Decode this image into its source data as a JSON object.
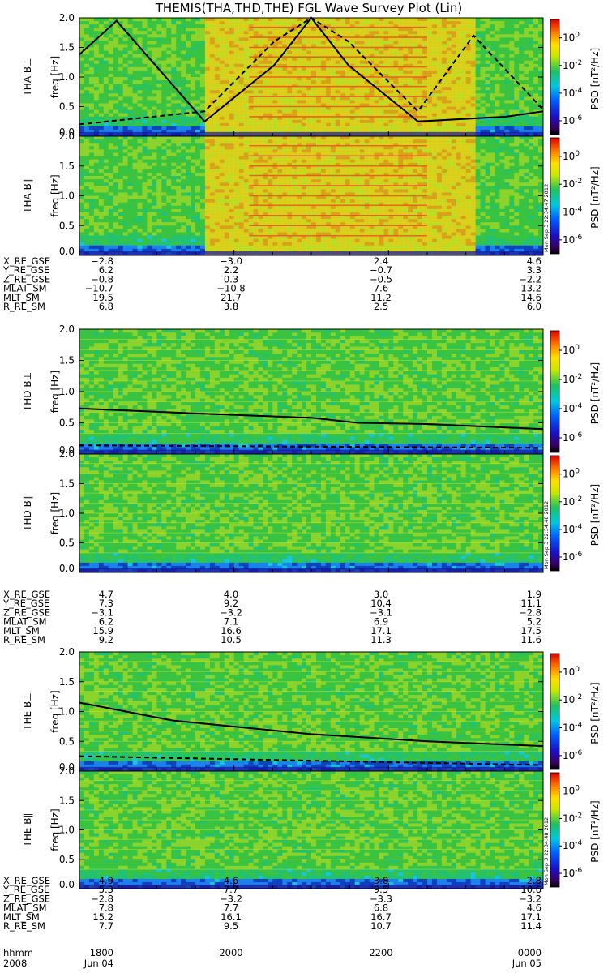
{
  "title": "THEMIS(THA,THD,THE) FGL Wave Survey Plot (Lin)",
  "colorbar": {
    "label": "PSD [nT²/Hz]",
    "ticks": [
      {
        "label": "10⁰",
        "base": "10",
        "exp": "0",
        "value": 1
      },
      {
        "label": "10⁻²",
        "base": "10",
        "exp": "-2",
        "value": 0.01
      },
      {
        "label": "10⁻⁴",
        "base": "10",
        "exp": "-4",
        "value": 0.0001
      },
      {
        "label": "10⁻⁶",
        "base": "10",
        "exp": "-6",
        "value": 1e-06
      }
    ],
    "stamps": [
      "Mon Sep  3 22:34:47 2012",
      "Mon Sep  3 22:34:48 2012",
      "Mon Sep  3 22:34:48 2012"
    ]
  },
  "chart_data": [
    {
      "type": "heatmap",
      "probe": "THA",
      "panel": "THA B⊥",
      "ylabel": "freq [Hz]",
      "yticks": [
        "0.0",
        "0.5",
        "1.0",
        "1.5",
        "2.0"
      ],
      "ylim": [
        0,
        2.0
      ],
      "x_range_hhmm": [
        "1800",
        "0000"
      ],
      "high_power_interval_fraction": [
        0.27,
        0.85
      ],
      "lines": [
        {
          "style": "solid",
          "description": "gyrofrequency curve",
          "x_fraction": [
            0.0,
            0.08,
            0.27,
            0.42,
            0.5,
            0.58,
            0.73,
            0.92,
            1.0
          ],
          "y": [
            1.38,
            1.95,
            0.25,
            1.2,
            2.0,
            1.2,
            0.25,
            0.33,
            0.42
          ]
        },
        {
          "style": "dashed",
          "description": "gyrofrequency/2 curve",
          "x_fraction": [
            0.0,
            0.27,
            0.42,
            0.5,
            0.58,
            0.73,
            0.85,
            1.0
          ],
          "y": [
            0.2,
            0.42,
            1.6,
            2.0,
            1.6,
            0.42,
            1.7,
            0.45
          ]
        }
      ]
    },
    {
      "type": "heatmap",
      "probe": "THA",
      "panel": "THA B∥",
      "ylabel": "freq [Hz]",
      "yticks": [
        "0.0",
        "0.5",
        "1.0",
        "1.5",
        "2.0"
      ],
      "ylim": [
        0,
        2.0
      ],
      "high_power_interval_fraction": [
        0.27,
        0.85
      ]
    },
    {
      "type": "heatmap",
      "probe": "THD",
      "panel": "THD B⊥",
      "ylabel": "freq [Hz]",
      "yticks": [
        "0.0",
        "0.5",
        "1.0",
        "1.5",
        "2.0"
      ],
      "ylim": [
        0,
        2.0
      ],
      "lines": [
        {
          "style": "solid",
          "x_fraction": [
            0.0,
            0.25,
            0.5,
            0.6,
            0.75,
            1.0
          ],
          "y": [
            0.73,
            0.65,
            0.58,
            0.5,
            0.48,
            0.4
          ]
        },
        {
          "style": "dashed",
          "x_fraction": [
            0.0,
            1.0
          ],
          "y": [
            0.14,
            0.1
          ]
        }
      ]
    },
    {
      "type": "heatmap",
      "probe": "THD",
      "panel": "THD B∥",
      "ylabel": "freq [Hz]",
      "yticks": [
        "0.0",
        "0.5",
        "1.0",
        "1.5",
        "2.0"
      ],
      "ylim": [
        0,
        2.0
      ]
    },
    {
      "type": "heatmap",
      "probe": "THE",
      "panel": "THE B⊥",
      "ylabel": "freq [Hz]",
      "yticks": [
        "0.0",
        "0.5",
        "1.0",
        "1.5",
        "2.0"
      ],
      "ylim": [
        0,
        2.0
      ],
      "lines": [
        {
          "style": "solid",
          "x_fraction": [
            0.0,
            0.2,
            0.5,
            0.75,
            1.0
          ],
          "y": [
            1.15,
            0.85,
            0.62,
            0.5,
            0.42
          ]
        },
        {
          "style": "dashed",
          "x_fraction": [
            0.0,
            1.0
          ],
          "y": [
            0.25,
            0.1
          ]
        }
      ]
    },
    {
      "type": "heatmap",
      "probe": "THE",
      "panel": "THE B∥",
      "ylabel": "freq [Hz]",
      "yticks": [
        "0.0",
        "0.5",
        "1.0",
        "1.5",
        "2.0"
      ],
      "ylim": [
        0,
        2.0
      ]
    }
  ],
  "orbit_blocks": [
    {
      "probe": "THA",
      "labels": [
        "X_RE_GSE",
        "Y_RE_GSE",
        "Z_RE_GSE",
        "MLAT_SM",
        "MLT_SM",
        "R_RE_SM"
      ],
      "columns": [
        [
          "−2.8",
          "6.2",
          "−0.8",
          "−10.7",
          "19.5",
          "6.8"
        ],
        [
          "−3.0",
          "2.2",
          "0.3",
          "−10.8",
          "21.7",
          "3.8"
        ],
        [
          "2.4",
          "−0.7",
          "−0.5",
          "7.6",
          "11.2",
          "2.5"
        ],
        [
          "4.6",
          "3.3",
          "−2.2",
          "13.2",
          "14.6",
          "6.0"
        ]
      ]
    },
    {
      "probe": "THD",
      "labels": [
        "X_RE_GSE",
        "Y_RE_GSE",
        "Z_RE_GSE",
        "MLAT_SM",
        "MLT_SM",
        "R_RE_SM"
      ],
      "columns": [
        [
          "4.7",
          "7.3",
          "−3.1",
          "6.2",
          "15.9",
          "9.2"
        ],
        [
          "4.0",
          "9.2",
          "−3.2",
          "7.1",
          "16.6",
          "10.5"
        ],
        [
          "3.0",
          "10.4",
          "−3.1",
          "6.9",
          "17.1",
          "11.3"
        ],
        [
          "1.9",
          "11.1",
          "−2.8",
          "5.2",
          "17.5",
          "11.6"
        ]
      ]
    },
    {
      "probe": "THE",
      "labels": [
        "X_RE_GSE",
        "Y_RE_GSE",
        "Z_RE_GSE",
        "MLAT_SM",
        "MLT_SM",
        "R_RE_SM"
      ],
      "columns": [
        [
          "4.9",
          "5.3",
          "−2.8",
          "7.8",
          "15.2",
          "7.7"
        ],
        [
          "4.6",
          "7.7",
          "−3.2",
          "7.7",
          "16.1",
          "9.5"
        ],
        [
          "3.8",
          "9.5",
          "−3.3",
          "6.8",
          "16.7",
          "10.7"
        ],
        [
          "2.8",
          "10.6",
          "−3.2",
          "4.6",
          "17.1",
          "11.4"
        ]
      ]
    }
  ],
  "time_axis": {
    "label": "hhmm",
    "ticks": [
      "1800",
      "2000",
      "2200",
      "0000"
    ],
    "year": "2008",
    "start_date": "Jun 04",
    "end_date": "Jun 05"
  }
}
